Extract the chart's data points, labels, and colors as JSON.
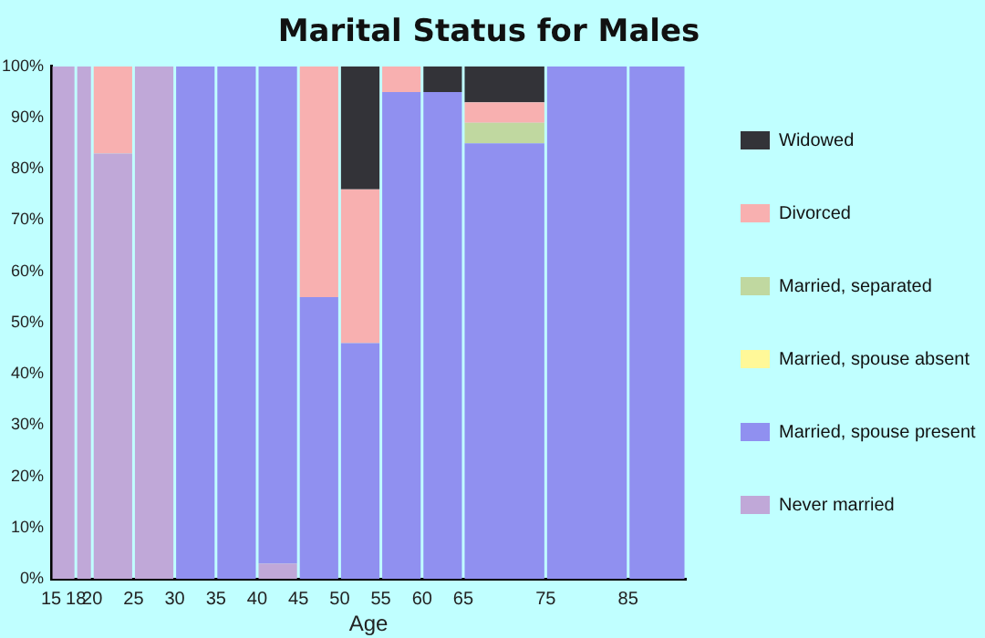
{
  "chart_data": {
    "type": "bar",
    "title": "Marital Status for Males",
    "xlabel": "Age",
    "stacked": true,
    "x": [
      16.5,
      19,
      22.5,
      27.5,
      32.5,
      37.5,
      42.5,
      47.5,
      52.5,
      57.5,
      62.5,
      70,
      80,
      88.5
    ],
    "xlim": [
      15,
      92
    ],
    "xticks": [
      15,
      18,
      20,
      25,
      30,
      35,
      40,
      45,
      50,
      55,
      60,
      65,
      75,
      85
    ],
    "ylim": [
      0,
      100
    ],
    "yticks": [
      {
        "value": 0,
        "label": "0%"
      },
      {
        "value": 10,
        "label": "10%"
      },
      {
        "value": 20,
        "label": "20%"
      },
      {
        "value": 30,
        "label": "30%"
      },
      {
        "value": 40,
        "label": "40%"
      },
      {
        "value": 50,
        "label": "50%"
      },
      {
        "value": 60,
        "label": "60%"
      },
      {
        "value": 70,
        "label": "70%"
      },
      {
        "value": 80,
        "label": "80%"
      },
      {
        "value": 90,
        "label": "90%"
      },
      {
        "value": 100,
        "label": "100%"
      }
    ],
    "legend": "right",
    "series": [
      {
        "name": "Never married",
        "color": "#c0a8d8",
        "values": [
          100,
          100,
          83,
          100,
          0,
          0,
          3,
          0,
          0,
          0,
          0,
          0,
          0,
          0
        ]
      },
      {
        "name": "Married, spouse present",
        "color": "#9090f0",
        "values": [
          0,
          0,
          0,
          0,
          100,
          100,
          97,
          55,
          46,
          95,
          95,
          85,
          100,
          100
        ]
      },
      {
        "name": "Married, spouse absent",
        "color": "#fff898",
        "values": [
          0,
          0,
          0,
          0,
          0,
          0,
          0,
          0,
          0,
          0,
          0,
          0,
          0,
          0
        ]
      },
      {
        "name": "Married, separated",
        "color": "#c0d8a0",
        "values": [
          0,
          0,
          0,
          0,
          0,
          0,
          0,
          0,
          0,
          0,
          0,
          4,
          0,
          0
        ]
      },
      {
        "name": "Divorced",
        "color": "#f8b0b0",
        "values": [
          0,
          0,
          17,
          0,
          0,
          0,
          0,
          45,
          30,
          5,
          0,
          4,
          0,
          0
        ]
      },
      {
        "name": "Widowed",
        "color": "#333338",
        "values": [
          0,
          0,
          0,
          0,
          0,
          0,
          0,
          0,
          24,
          0,
          5,
          7,
          0,
          0
        ]
      }
    ]
  }
}
